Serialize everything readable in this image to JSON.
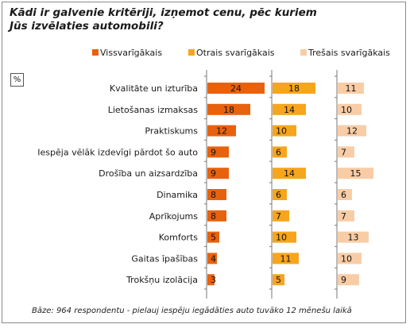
{
  "title_lines": [
    "Kādi ir galvenie kritēriji, izņemot cenu, pēc kuriem",
    "Jūs izvēlaties automobili?"
  ],
  "unit_label": "%",
  "footnote": "Bāze: 964 respondentu - pielauj iespēju iegādāties auto tuvāko 12 mēnešu laikā",
  "colors": {
    "series1": "#e8620e",
    "series2": "#f7a51c",
    "series3": "#f8cda6",
    "axis": "#7a7a7a",
    "text": "#1a1a1a"
  },
  "chart_data": {
    "type": "bar",
    "orientation": "horizontal",
    "title": "Kādi ir galvenie kritēriji, izņemot cenu, pēc kuriem Jūs izvēlaties automobili?",
    "unit": "%",
    "categories": [
      "Kvalitāte un izturība",
      "Lietošanas izmaksas",
      "Praktiskums",
      "Iespēja vēlāk izdevīgi pārdot šo auto",
      "Drošība un aizsardzība",
      "Dinamika",
      "Aprīkojums",
      "Komforts",
      "Gaitas īpašības",
      "Trokšņu izolācija"
    ],
    "series": [
      {
        "name": "Vissvarīgākais",
        "values": [
          24,
          18,
          12,
          9,
          9,
          8,
          8,
          5,
          4,
          3
        ]
      },
      {
        "name": "Otrais svarīgākais",
        "values": [
          18,
          14,
          10,
          6,
          14,
          6,
          7,
          10,
          11,
          5
        ]
      },
      {
        "name": "Trešais svarīgākais",
        "values": [
          11,
          10,
          12,
          7,
          15,
          6,
          7,
          13,
          10,
          9
        ]
      }
    ],
    "legend_position": "top",
    "grid": false,
    "data_labels": true
  }
}
